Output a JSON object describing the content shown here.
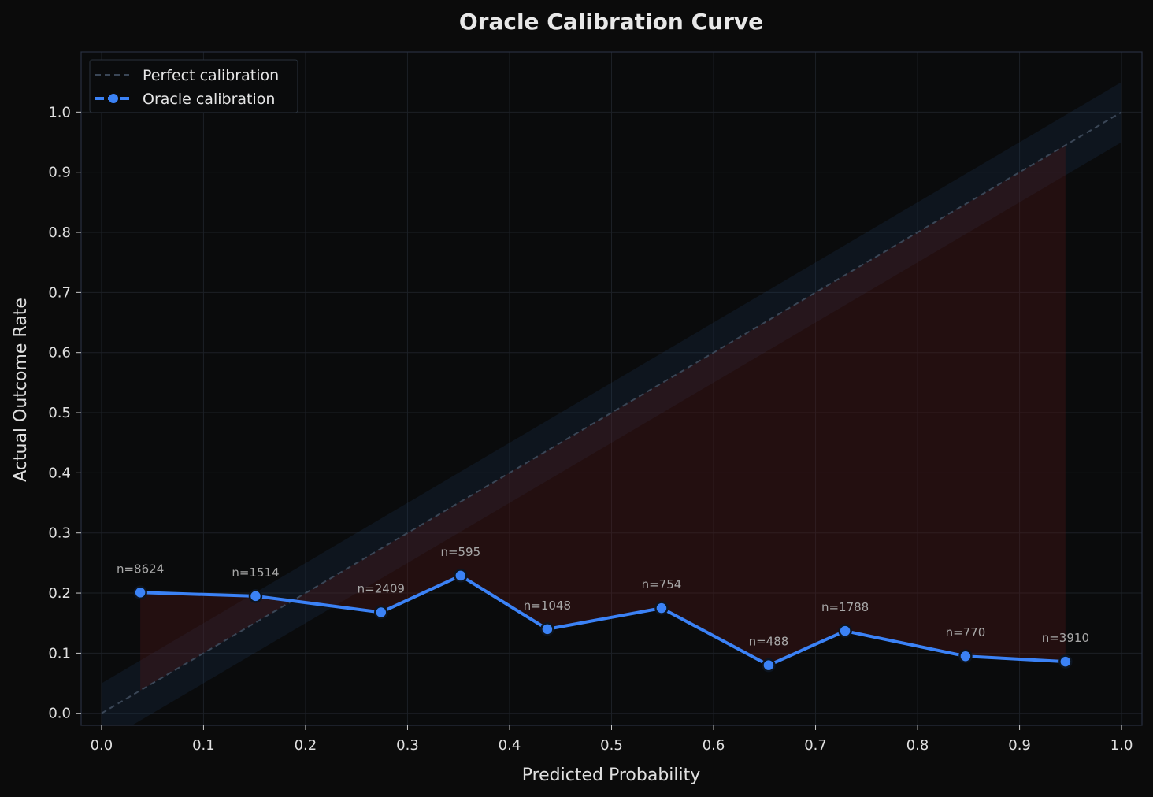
{
  "chart_data": {
    "type": "line",
    "title": "Oracle Calibration Curve",
    "xlabel": "Predicted Probability",
    "ylabel": "Actual Outcome Rate",
    "xlim": [
      -0.02,
      1.02
    ],
    "ylim": [
      -0.02,
      1.1
    ],
    "xticks": [
      "0.0",
      "0.1",
      "0.2",
      "0.3",
      "0.4",
      "0.5",
      "0.6",
      "0.7",
      "0.8",
      "0.9",
      "1.0"
    ],
    "yticks": [
      "0.0",
      "0.1",
      "0.2",
      "0.3",
      "0.4",
      "0.5",
      "0.6",
      "0.7",
      "0.8",
      "0.9",
      "1.0"
    ],
    "grid": true,
    "legend_position": "top-left",
    "perfect_band_halfwidth": 0.05,
    "series": [
      {
        "name": "Perfect calibration",
        "style": "dashed",
        "color": "#2e3a48",
        "x": [
          0.0,
          1.0
        ],
        "y": [
          0.0,
          1.0
        ]
      },
      {
        "name": "Oracle calibration",
        "style": "solid-markers",
        "color": "#3b82f6",
        "x": [
          0.038,
          0.151,
          0.274,
          0.352,
          0.437,
          0.549,
          0.654,
          0.729,
          0.847,
          0.945
        ],
        "y": [
          0.201,
          0.195,
          0.168,
          0.229,
          0.14,
          0.175,
          0.08,
          0.137,
          0.095,
          0.086
        ],
        "labels": [
          "n=8624",
          "n=1514",
          "n=2409",
          "n=595",
          "n=1048",
          "n=754",
          "n=488",
          "n=1788",
          "n=770",
          "n=3910"
        ]
      }
    ],
    "colors": {
      "background": "#0b0b0b",
      "plot_background": "#0a0b0c",
      "grid": "#1c2026",
      "spine": "#283040",
      "band": "#1e3a5f",
      "gap_fill": "#5a1a1a",
      "marker_edge": "#0d1520"
    }
  }
}
